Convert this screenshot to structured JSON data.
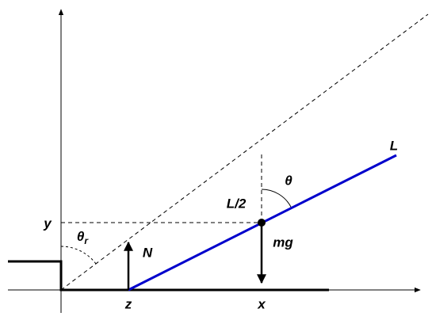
{
  "labels": {
    "length": "L",
    "theta": "θ",
    "half_length": "L/2",
    "y": "y",
    "theta_r": {
      "symbol": "θ",
      "subscript": "r"
    },
    "normal_force": "N",
    "weight": "mg",
    "z": "z",
    "x": "x"
  }
}
